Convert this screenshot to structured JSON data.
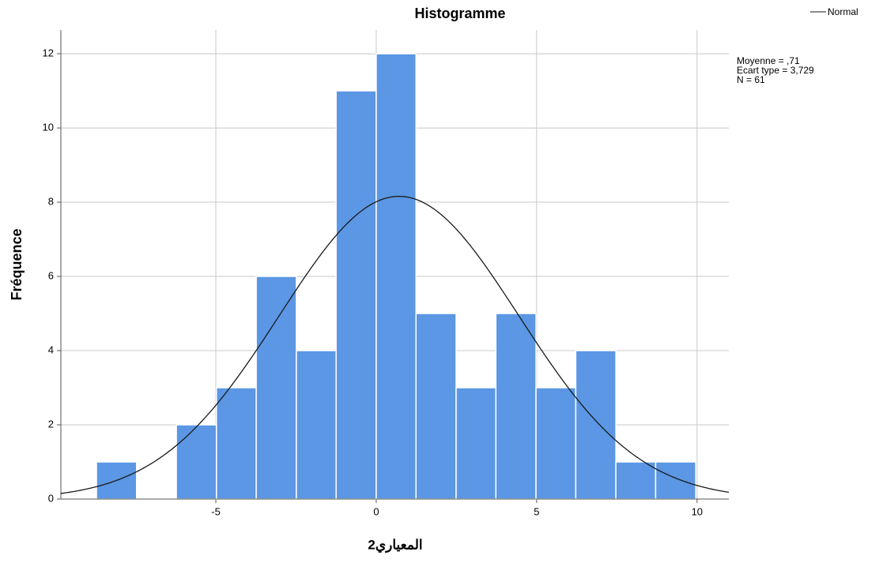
{
  "chart_data": {
    "type": "histogram",
    "title": "Histogramme",
    "x_label": "المعياري2",
    "y_label": "Fréquence",
    "bins": [
      -8.72,
      -7.47,
      -6.23,
      -4.98,
      -3.74,
      -2.49,
      -1.25,
      0,
      1.24,
      2.49,
      3.73,
      4.98,
      6.22,
      7.47,
      8.71,
      9.96
    ],
    "counts": [
      1,
      0,
      2,
      3,
      6,
      4,
      11,
      12,
      5,
      3,
      5,
      3,
      4,
      1,
      1
    ],
    "color": "#5b97e4",
    "xlim": [
      -9.83,
      10.99
    ],
    "xticks": [
      -5,
      0,
      5,
      10
    ],
    "ylim": [
      0,
      12.64
    ],
    "yticks": [
      0,
      2,
      4,
      6,
      8,
      10,
      12
    ],
    "grid": true,
    "curve": {
      "name": "Normal",
      "color": "#1a1a1a"
    },
    "stats": [
      {
        "value": 0.71,
        "label": "Moyenne = ,71"
      },
      {
        "value": 3.729,
        "label": "Ecart type = 3,729"
      },
      {
        "value": 61,
        "label": "N = 61"
      }
    ]
  }
}
